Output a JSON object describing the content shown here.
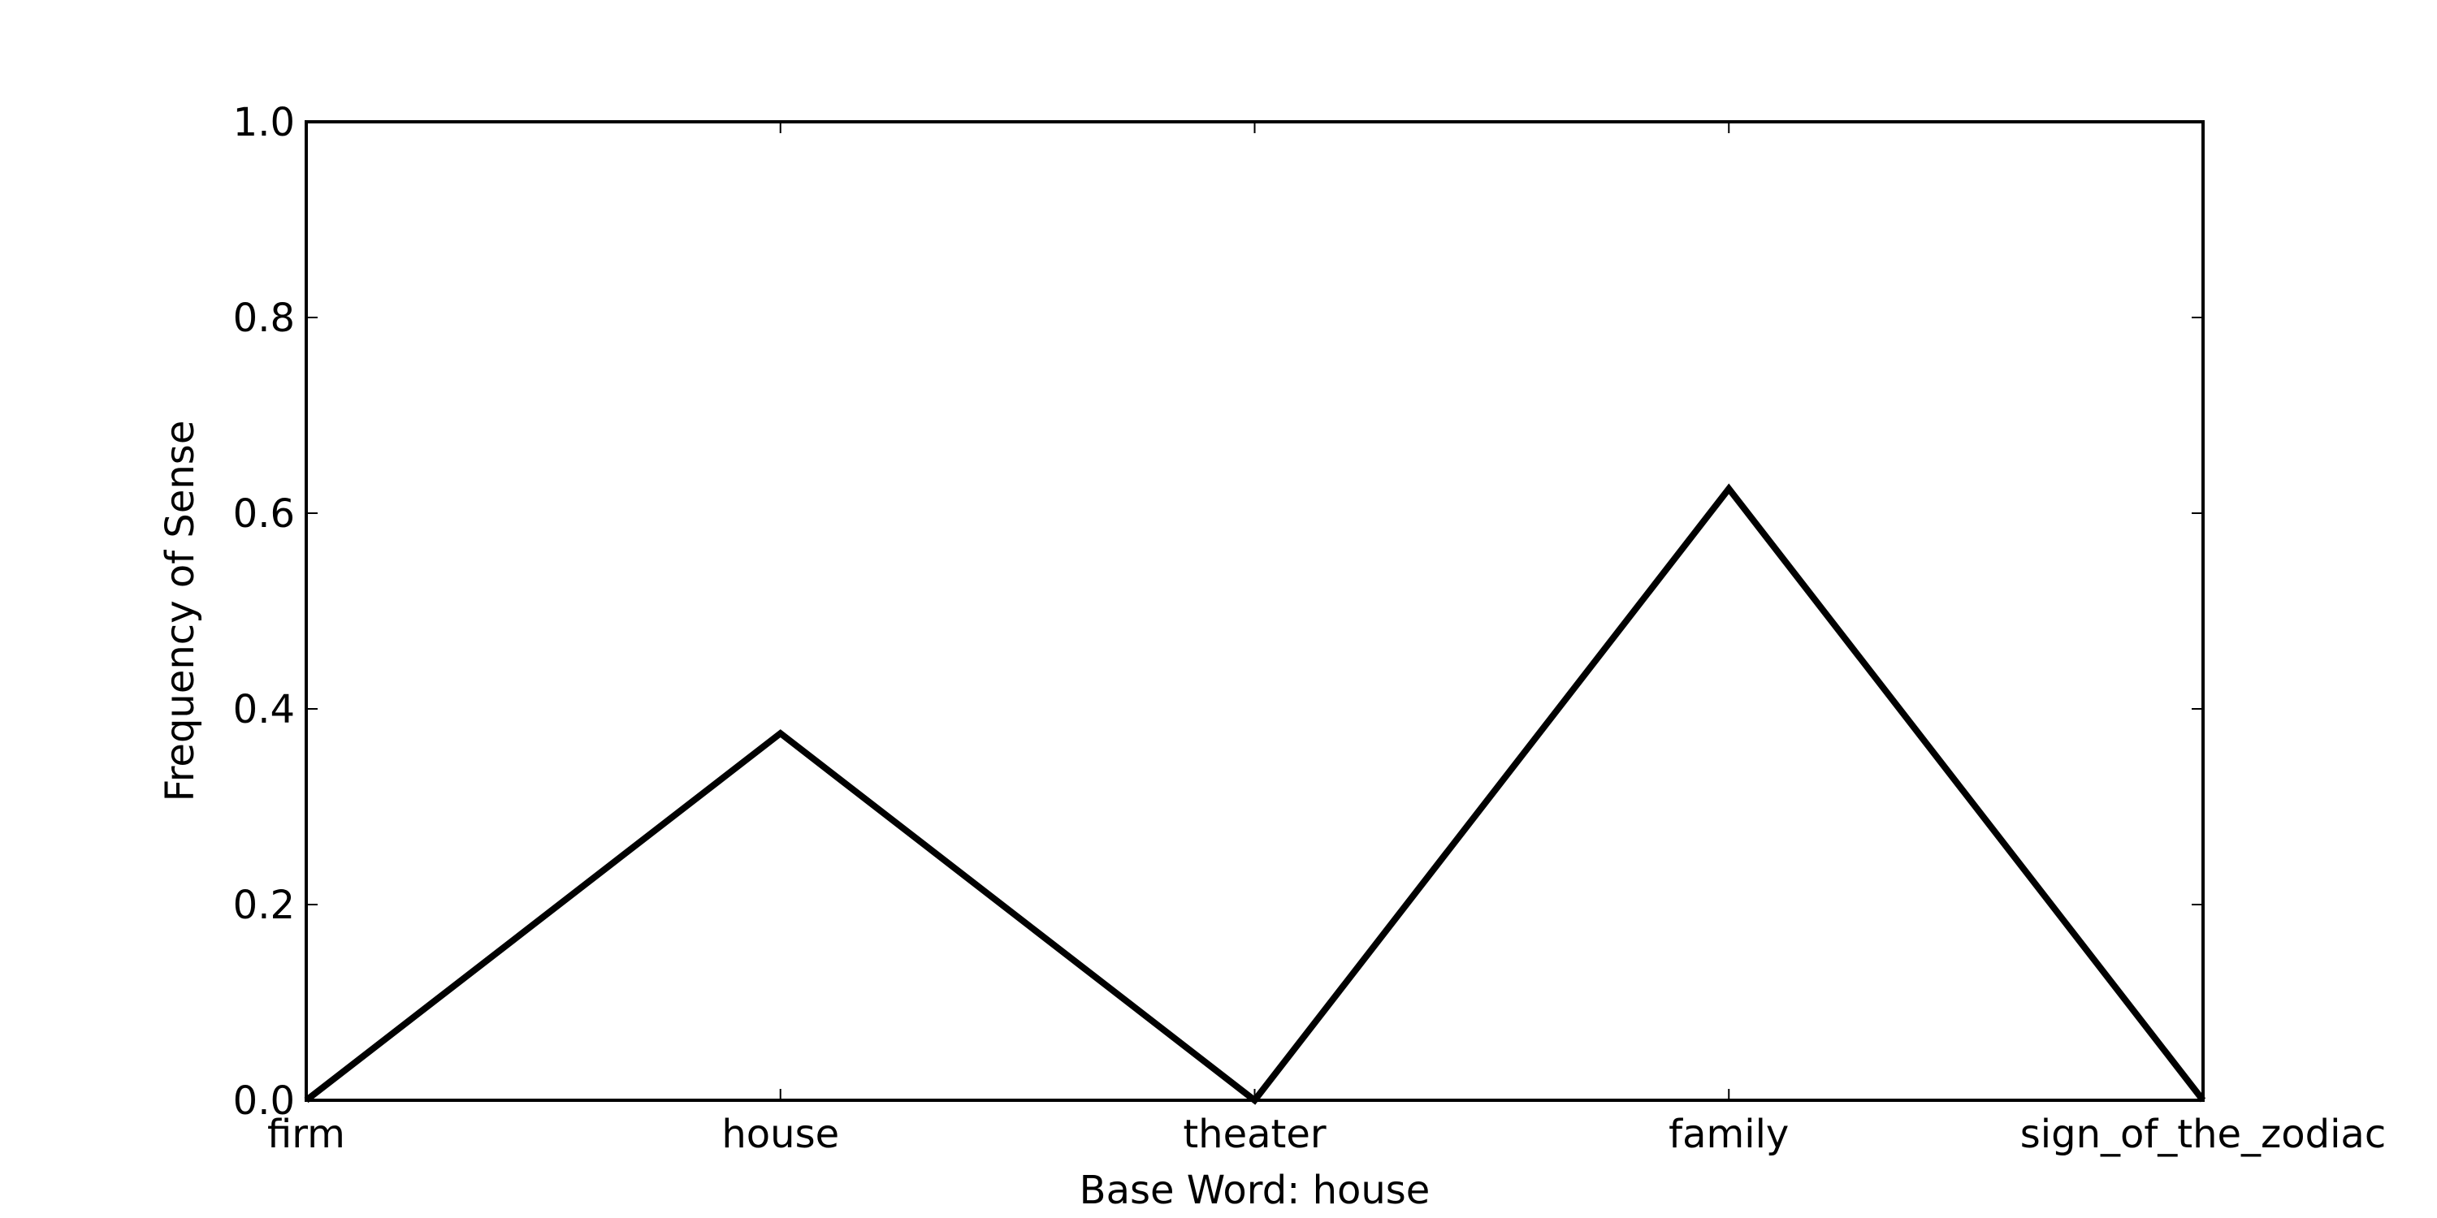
{
  "chart_data": {
    "type": "line",
    "title": "",
    "xlabel": "Base Word: house",
    "ylabel": "Frequency of Sense",
    "categories": [
      "firm",
      "house",
      "theater",
      "family",
      "sign_of_the_zodiac"
    ],
    "series": [
      {
        "values": [
          0.0,
          0.375,
          0.0,
          0.625,
          0.0
        ]
      }
    ],
    "ylim": [
      0,
      1
    ],
    "yticks": [
      0.0,
      0.2,
      0.4,
      0.6,
      0.8,
      1.0
    ],
    "ytick_labels": [
      "0.0",
      "0.2",
      "0.4",
      "0.6",
      "0.8",
      "1.0"
    ],
    "grid": false,
    "line_color": "#000000"
  }
}
